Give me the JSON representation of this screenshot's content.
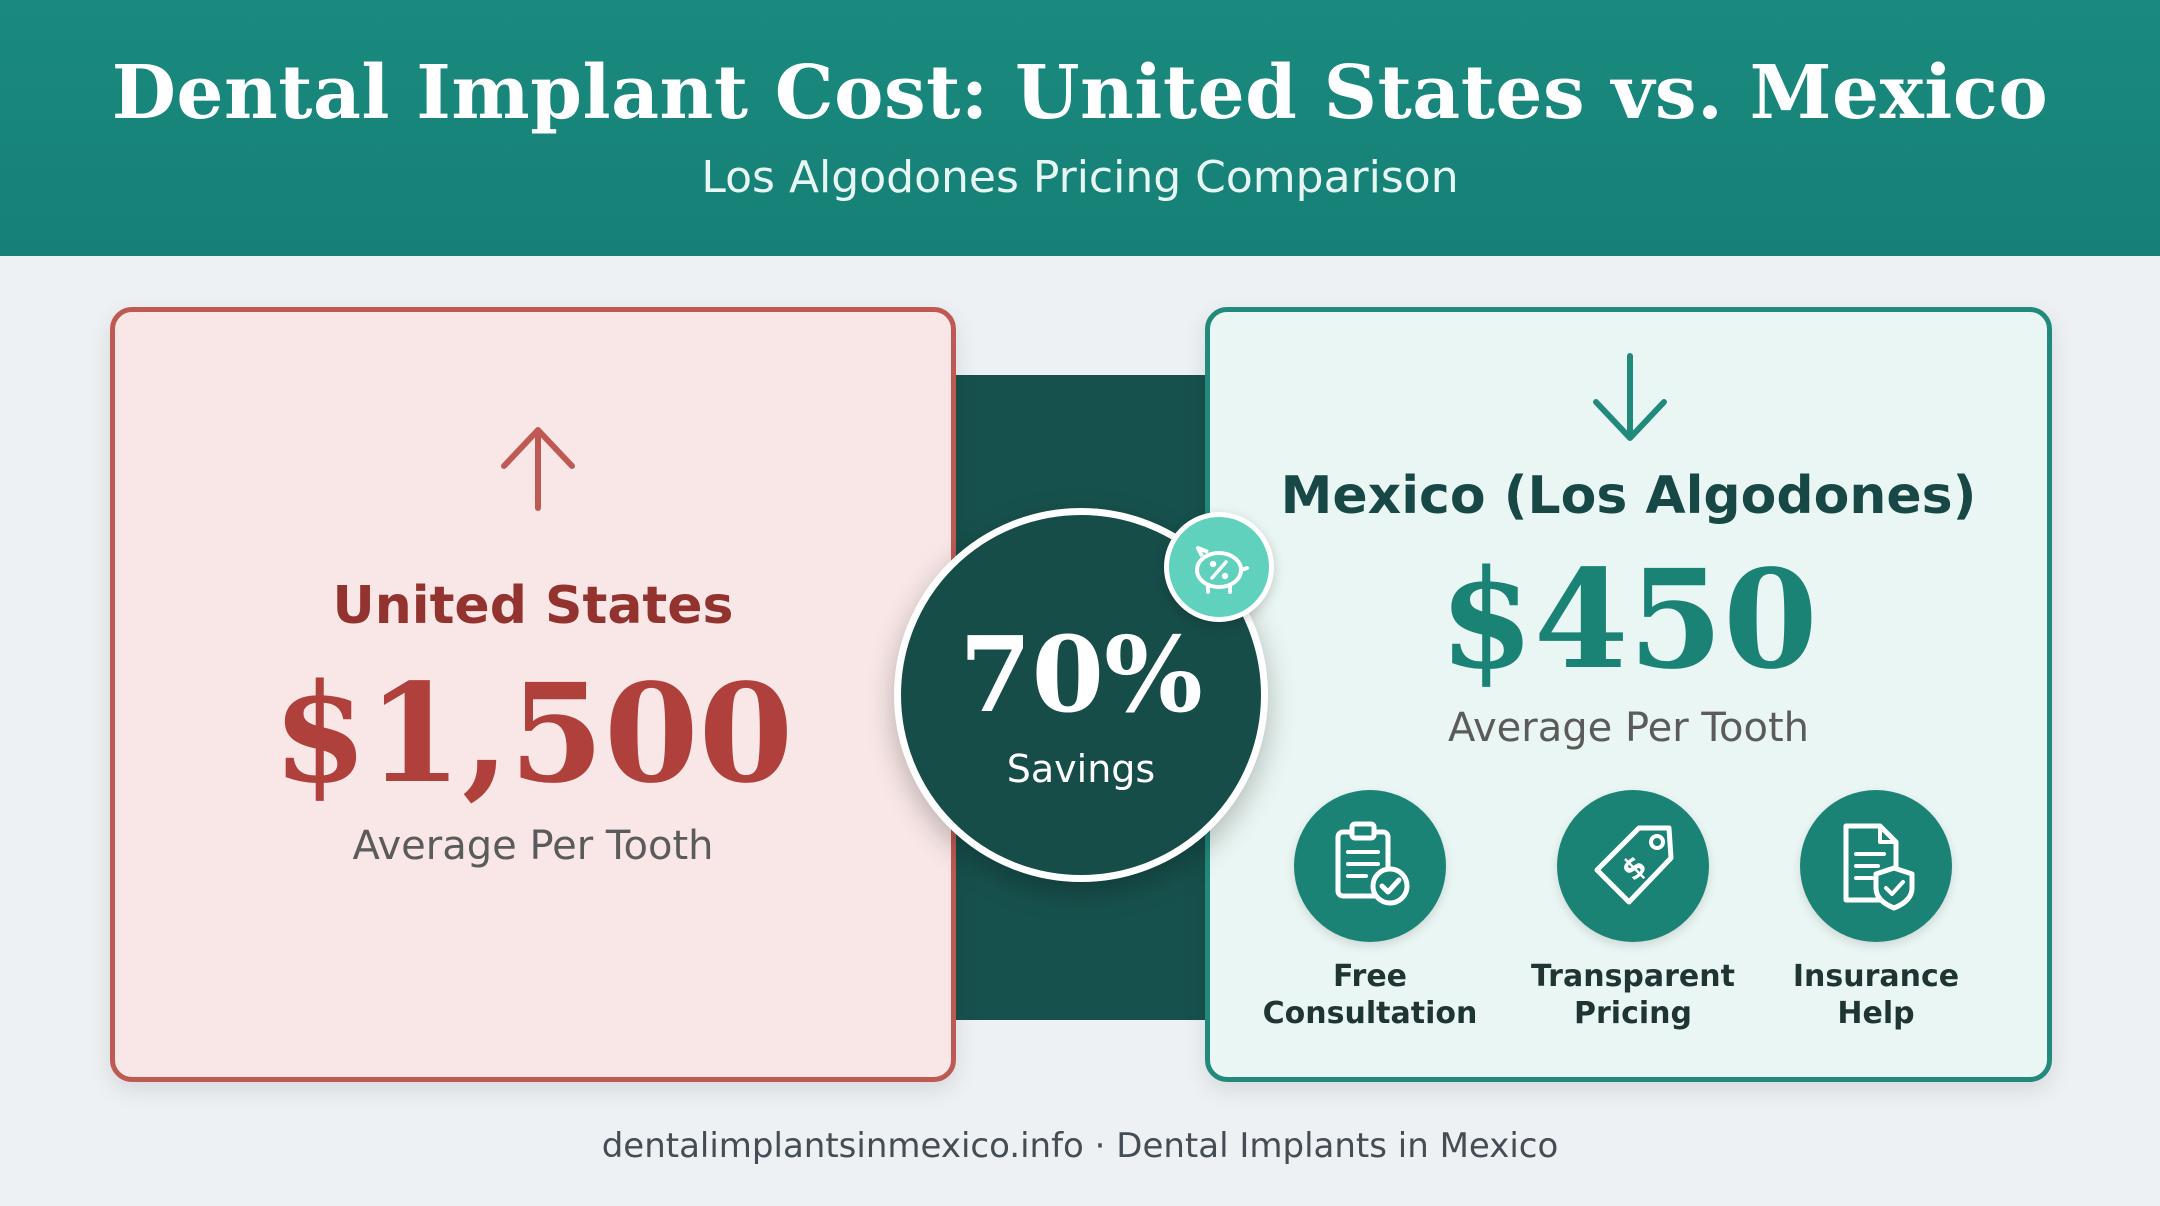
{
  "header": {
    "title": "Dental Implant Cost: United States vs. Mexico",
    "subtitle": "Los Algodones Pricing Comparison"
  },
  "us_card": {
    "country": "United States",
    "price": "$1,500",
    "unit": "Average Per Tooth",
    "icon": "arrow-up-icon"
  },
  "mexico_card": {
    "country": "Mexico (Los Algodones)",
    "price": "$450",
    "unit": "Average Per Tooth",
    "icon": "arrow-down-icon",
    "features": [
      {
        "label_line1": "Free",
        "label_line2": "Consultation",
        "icon": "clipboard-check-icon"
      },
      {
        "label_line1": "Transparent",
        "label_line2": "Pricing",
        "icon": "price-tag-icon"
      },
      {
        "label_line1": "Insurance",
        "label_line2": "Help",
        "icon": "document-shield-icon"
      }
    ]
  },
  "savings": {
    "value": "70%",
    "label": "Savings",
    "icon": "piggy-bank-percent-icon"
  },
  "footer": {
    "text": "dentalimplantsinmexico.info · Dental Implants in Mexico"
  },
  "colors": {
    "header_bg": "#1a8a7e",
    "us_accent": "#b0403b",
    "us_bg": "#f8e7e6",
    "mexico_accent": "#1b8376",
    "mexico_bg": "#eaf6f3",
    "savings_bg": "#174d49",
    "piggy_bg": "#5fd1bd"
  }
}
